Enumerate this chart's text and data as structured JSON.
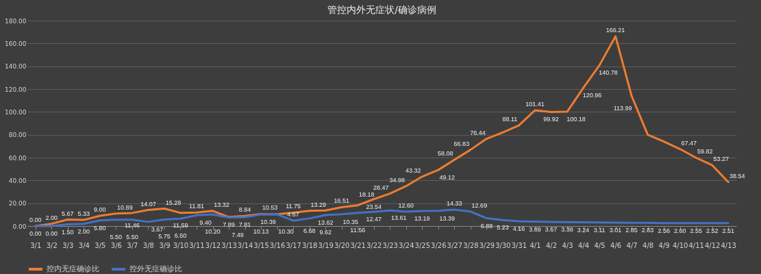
{
  "chart_data": {
    "type": "line",
    "title": "管控内外无症状/确诊病例",
    "categories": [
      "3/1",
      "3/2",
      "3/3",
      "3/4",
      "3/5",
      "3/6",
      "3/7",
      "3/8",
      "3/9",
      "3/10",
      "3/11",
      "3/12",
      "3/13",
      "3/14",
      "3/15",
      "3/16",
      "3/17",
      "3/18",
      "3/19",
      "3/20",
      "3/21",
      "3/22",
      "3/23",
      "3/24",
      "3/25",
      "3/26",
      "3/27",
      "3/28",
      "3/29",
      "3/30",
      "3/31",
      "4/1",
      "4/2",
      "4/3",
      "4/4",
      "4/5",
      "4/6",
      "4/7",
      "4/8",
      "4/9",
      "4/10",
      "4/11",
      "4/12",
      "4/13"
    ],
    "series": [
      {
        "name": "控内无症确诊比",
        "color": "#ed7d31",
        "values": [
          0,
          2,
          5.67,
          5.33,
          9,
          10.89,
          11.46,
          14.07,
          15.28,
          11.59,
          11.81,
          13.32,
          7.89,
          8.84,
          10.53,
          10.39,
          11.75,
          13.29,
          13.62,
          16.51,
          18.18,
          23.54,
          28.47,
          34.98,
          43.32,
          49.12,
          58.08,
          66.83,
          76.44,
          82,
          88.11,
          101.41,
          99.92,
          100.18,
          120.96,
          140.78,
          166.21,
          113.99,
          80,
          74,
          67.47,
          59.82,
          53.27,
          38.54
        ],
        "value_labels": [
          "0.00",
          "2.00",
          "5.67",
          "5.33",
          "9.00",
          "10.89",
          "11.46",
          "14.07",
          "15.28",
          "11.59",
          "11.81",
          "13.32",
          "7.89",
          "8.84",
          "10.53",
          "10.39",
          "11.75",
          "13.29",
          "13.62",
          "16.51",
          "18.18",
          "23.54",
          "28.47",
          "34.98",
          "43.32",
          "49.12",
          "58.08",
          "66.83",
          "76.44",
          null,
          "88.11",
          "101.41",
          "99.92",
          "100.18",
          "120.96",
          "140.78",
          "166.21",
          "113.99",
          null,
          null,
          "67.47",
          "59.82",
          "53.27",
          "38.54"
        ]
      },
      {
        "name": "控外无症确诊比",
        "color": "#4472c4",
        "values": [
          0,
          0,
          1.5,
          2,
          5,
          5.5,
          5.5,
          3.67,
          5.75,
          6.5,
          9.4,
          10.2,
          7.49,
          7.81,
          10.13,
          10.3,
          4.67,
          6.68,
          9.62,
          10.35,
          11.56,
          12.47,
          13.61,
          12.6,
          13.19,
          13.39,
          14.33,
          12.69,
          6.88,
          5.23,
          4.16,
          3.89,
          3.67,
          3.38,
          3.24,
          3.11,
          3.01,
          2.85,
          2.83,
          2.56,
          2.6,
          2.55,
          2.52,
          2.51
        ],
        "value_labels": [
          "0.00",
          "0.00",
          "1.50",
          "2.00",
          "5.00",
          "5.50",
          "5.50",
          "3.67",
          "5.75",
          "6.50",
          "9.40",
          "10.20",
          "7.49",
          "7.81",
          "10.13",
          "10.30",
          "4.67",
          "6.68",
          "9.62",
          "10.35",
          "11.56",
          "12.47",
          "13.61",
          "12.60",
          "13.19",
          "13.39",
          "14.33",
          "12.69",
          "6.88",
          "5.23",
          "4.16",
          "3.89",
          "3.67",
          "3.38",
          "3.24",
          "3.11",
          "3.01",
          "2.85",
          "2.83",
          "2.56",
          "2.60",
          "2.55",
          "2.52",
          "2.51"
        ]
      }
    ],
    "ylim": [
      0,
      180
    ],
    "yticks": [
      {
        "value": 0,
        "label": "0.00"
      },
      {
        "value": 20,
        "label": "20.00"
      },
      {
        "value": 40,
        "label": "40.00"
      },
      {
        "value": 60,
        "label": "60.00"
      },
      {
        "value": 80,
        "label": "80.00"
      },
      {
        "value": 100,
        "label": "100.00"
      },
      {
        "value": 120,
        "label": "120.00"
      },
      {
        "value": 140,
        "label": "140.00"
      },
      {
        "value": 160,
        "label": "160.00"
      },
      {
        "value": 180,
        "label": "180.00"
      }
    ],
    "grid": "y",
    "legend": "bottom",
    "marker": "none",
    "line_style": "solid"
  }
}
